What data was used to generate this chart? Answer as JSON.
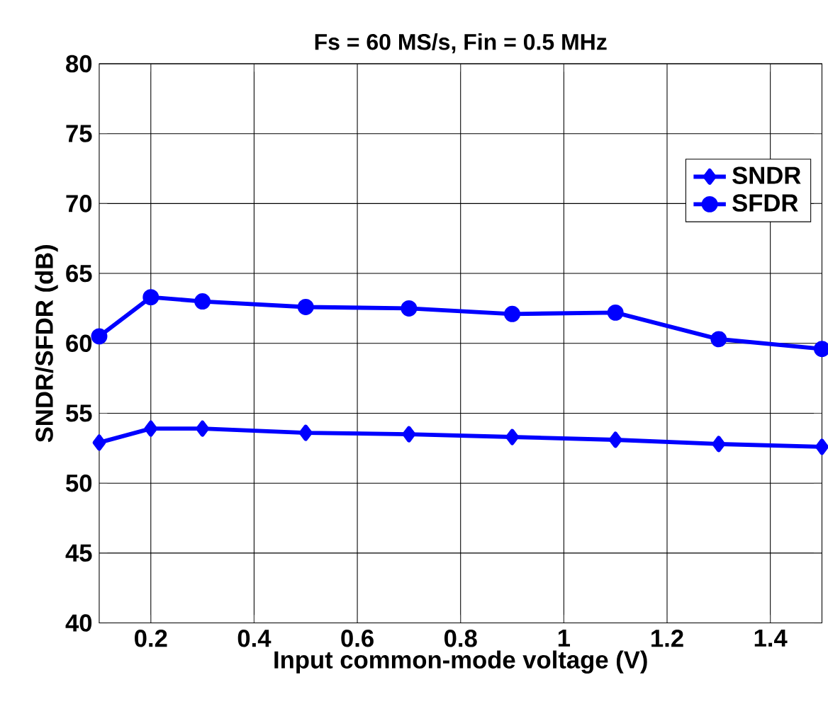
{
  "chart_data": {
    "type": "line",
    "title": "Fs = 60 MS/s, Fin = 0.5 MHz",
    "xlabel": "Input common-mode voltage (V)",
    "ylabel": "SNDR/SFDR (dB)",
    "x": [
      0.1,
      0.2,
      0.3,
      0.5,
      0.7,
      0.9,
      1.1,
      1.3,
      1.5
    ],
    "series": [
      {
        "name": "SNDR",
        "color": "#0000ff",
        "marker": "diamond",
        "values": [
          52.9,
          53.9,
          53.9,
          53.6,
          53.5,
          53.3,
          53.1,
          52.8,
          52.6
        ]
      },
      {
        "name": "SFDR",
        "color": "#0000ff",
        "marker": "circle",
        "values": [
          60.5,
          63.3,
          63.0,
          62.6,
          62.5,
          62.1,
          62.2,
          60.3,
          59.6
        ]
      }
    ],
    "xlim": [
      0.1,
      1.5
    ],
    "ylim": [
      40,
      80
    ],
    "xticks": [
      0.2,
      0.4,
      0.6,
      0.8,
      1,
      1.2,
      1.4
    ],
    "yticks": [
      40,
      45,
      50,
      55,
      60,
      65,
      70,
      75,
      80
    ],
    "grid": true,
    "legend": "top right",
    "line_style": "solid"
  }
}
